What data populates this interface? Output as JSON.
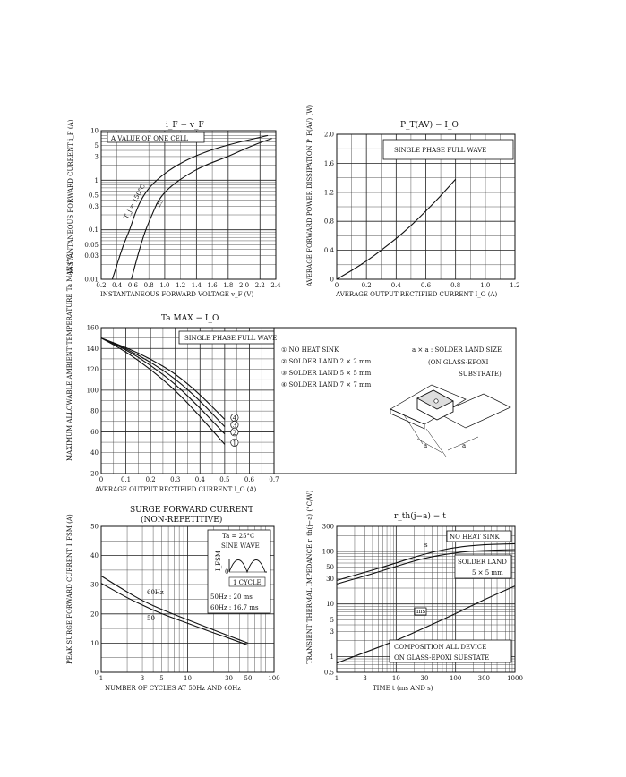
{
  "chart_data": [
    {
      "type": "line",
      "title": "i_F − v_F",
      "ylabel": "INSTANTANEOUS FORWARD CURRENT  i_F (A)",
      "xlabel": "INSTANTANEOUS FORWARD VOLTAGE  v_F (V)",
      "xlim": [
        0.2,
        2.4
      ],
      "ylim": [
        0.01,
        10
      ],
      "yscale": "log",
      "xticks": [
        "0.2",
        "0.4",
        "0.6",
        "0.8",
        "1.0",
        "1.2",
        "1.4",
        "1.6",
        "1.8",
        "2.0",
        "2.2",
        "2.4"
      ],
      "yticks": [
        "0.01",
        "0.03",
        "0.05",
        "0.1",
        "0.3",
        "0.5",
        "1",
        "3",
        "5",
        "10"
      ],
      "annotations": [
        "A VALUE OF ONE CELL",
        "T_j = 150°C",
        "25"
      ],
      "series": [
        {
          "name": "T_j = 150°C",
          "x": [
            0.34,
            0.4,
            0.48,
            0.56,
            0.62,
            0.7,
            0.8,
            0.95,
            1.15,
            1.4,
            1.75,
            2.3
          ],
          "y": [
            0.01,
            0.02,
            0.05,
            0.1,
            0.2,
            0.4,
            0.7,
            1.2,
            2,
            3.2,
            5,
            8
          ]
        },
        {
          "name": "25",
          "x": [
            0.58,
            0.63,
            0.7,
            0.76,
            0.84,
            0.92,
            1.05,
            1.25,
            1.5,
            1.8,
            2.1,
            2.35
          ],
          "y": [
            0.01,
            0.02,
            0.05,
            0.1,
            0.2,
            0.4,
            0.7,
            1.2,
            2,
            3,
            5,
            7
          ]
        }
      ]
    },
    {
      "type": "line",
      "title": "P_T(AV) − I_O",
      "ylabel": "AVERAGE FORWARD POWER DISSIPATION  P_F(AV) (W)",
      "xlabel": "AVERAGE OUTPUT RECTIFIED CURRENT  I_O (A)",
      "xlim": [
        0,
        1.2
      ],
      "ylim": [
        0,
        2.0
      ],
      "xticks": [
        "0",
        "0.2",
        "0.4",
        "0.6",
        "0.8",
        "1.0",
        "1.2"
      ],
      "yticks": [
        "0",
        "0.4",
        "0.8",
        "1.2",
        "1.6",
        "2.0"
      ],
      "annotations": [
        "SINGLE PHASE FULL WAVE"
      ],
      "series": [
        {
          "name": "SINGLE PHASE FULL WAVE",
          "x": [
            0,
            0.1,
            0.2,
            0.3,
            0.4,
            0.5,
            0.6,
            0.7,
            0.8
          ],
          "y": [
            0,
            0.12,
            0.25,
            0.4,
            0.56,
            0.74,
            0.94,
            1.15,
            1.38
          ]
        }
      ]
    },
    {
      "type": "line",
      "title": "Ta MAX − I_O",
      "ylabel": "MAXIMUM ALLOWABLE AMBIENT TEMPERATURE  Ta MAX (°C)",
      "xlabel": "AVERAGE OUTPUT RECTIFIED CURRENT  I_O (A)",
      "xlim": [
        0,
        0.7
      ],
      "ylim": [
        20,
        160
      ],
      "xticks": [
        "0",
        "0.1",
        "0.2",
        "0.3",
        "0.4",
        "0.5",
        "0.6",
        "0.7"
      ],
      "yticks": [
        "20",
        "40",
        "60",
        "80",
        "100",
        "120",
        "140",
        "160"
      ],
      "annotations": [
        "SINGLE PHASE FULL WAVE",
        "a × a : SOLDER LAND SIZE",
        "(ON GLASS-EPOXI",
        "SUBSTRATE)",
        "① NO HEAT SINK",
        "② SOLDER LAND  2 × 2 mm",
        "③ SOLDER LAND  5 × 5 mm",
        "④ SOLDER LAND  7 × 7 mm",
        "a",
        "a"
      ],
      "series": [
        {
          "name": "①",
          "x": [
            0,
            0.1,
            0.2,
            0.3,
            0.4,
            0.5
          ],
          "y": [
            150,
            137,
            120,
            100,
            75,
            48
          ]
        },
        {
          "name": "②",
          "x": [
            0,
            0.1,
            0.2,
            0.3,
            0.4,
            0.5
          ],
          "y": [
            150,
            139,
            124,
            106,
            83,
            58
          ]
        },
        {
          "name": "③",
          "x": [
            0,
            0.1,
            0.2,
            0.3,
            0.4,
            0.5
          ],
          "y": [
            150,
            140,
            127,
            111,
            90,
            65
          ]
        },
        {
          "name": "④",
          "x": [
            0,
            0.1,
            0.2,
            0.3,
            0.4,
            0.5
          ],
          "y": [
            150,
            141,
            130,
            116,
            96,
            72
          ]
        }
      ]
    },
    {
      "type": "line",
      "title": "SURGE FORWARD CURRENT",
      "subtitle": "(NON-REPETITIVE)",
      "ylabel": "PEAK SURGE FORWARD CURRENT  I_FSM (A)",
      "xlabel": "NUMBER OF CYCLES AT 50Hz AND 60Hz",
      "xlim": [
        1,
        100
      ],
      "ylim": [
        0,
        50
      ],
      "xscale": "log",
      "xticks": [
        "1",
        "3",
        "5",
        "10",
        "30",
        "50",
        "100"
      ],
      "yticks": [
        "0",
        "10",
        "20",
        "30",
        "40",
        "50"
      ],
      "annotations": [
        "Ta = 25°C",
        "SINE WAVE",
        "I_FSM",
        "0",
        "1 CYCLE",
        "50Hz : 20 ms",
        "60Hz : 16.7 ms"
      ],
      "series": [
        {
          "name": "60Hz",
          "x": [
            1,
            2,
            3,
            5,
            10,
            20,
            30,
            50
          ],
          "y": [
            33,
            27.5,
            24.5,
            21.5,
            18,
            14.5,
            12.5,
            10
          ]
        },
        {
          "name": "50",
          "x": [
            1,
            2,
            3,
            5,
            10,
            20,
            30,
            50
          ],
          "y": [
            30.5,
            25.5,
            23,
            20,
            16.8,
            13.5,
            11.7,
            9.3
          ]
        }
      ]
    },
    {
      "type": "line",
      "title": "r_th(j−a) − t",
      "ylabel": "TRANSIENT THERMAL IMPEDANCE  r_th(j−a) (°C/W)",
      "xlabel": "TIME  t  (ms AND s)",
      "xlim": [
        1,
        1000
      ],
      "ylim": [
        0.5,
        300
      ],
      "xscale": "log",
      "yscale": "log",
      "xticks": [
        "1",
        "3",
        "10",
        "30",
        "100",
        "300",
        "1000"
      ],
      "yticks": [
        "0.5",
        "1",
        "3",
        "5",
        "10",
        "30",
        "50",
        "100",
        "300"
      ],
      "annotations": [
        "NO HEAT SINK",
        "SOLDER LAND",
        "5 × 5 mm",
        "COMPOSITION ALL DEVICE",
        "ON GLASS-EPOXI SUBSTATE",
        "ms",
        "s"
      ],
      "series": [
        {
          "name": "NO HEAT SINK",
          "x": [
            1,
            3,
            10,
            30,
            100,
            300,
            1000
          ],
          "y": [
            28,
            40,
            60,
            90,
            120,
            135,
            140
          ]
        },
        {
          "name": "SOLDER LAND 5 × 5 mm",
          "x": [
            1,
            3,
            10,
            30,
            100,
            300,
            1000
          ],
          "y": [
            24,
            34,
            52,
            75,
            95,
            105,
            108
          ]
        },
        {
          "name": "ms",
          "x": [
            1,
            3,
            10,
            30,
            100,
            300,
            1000
          ],
          "y": [
            0.75,
            1.2,
            2,
            3.5,
            6.5,
            12,
            22
          ]
        }
      ]
    }
  ]
}
